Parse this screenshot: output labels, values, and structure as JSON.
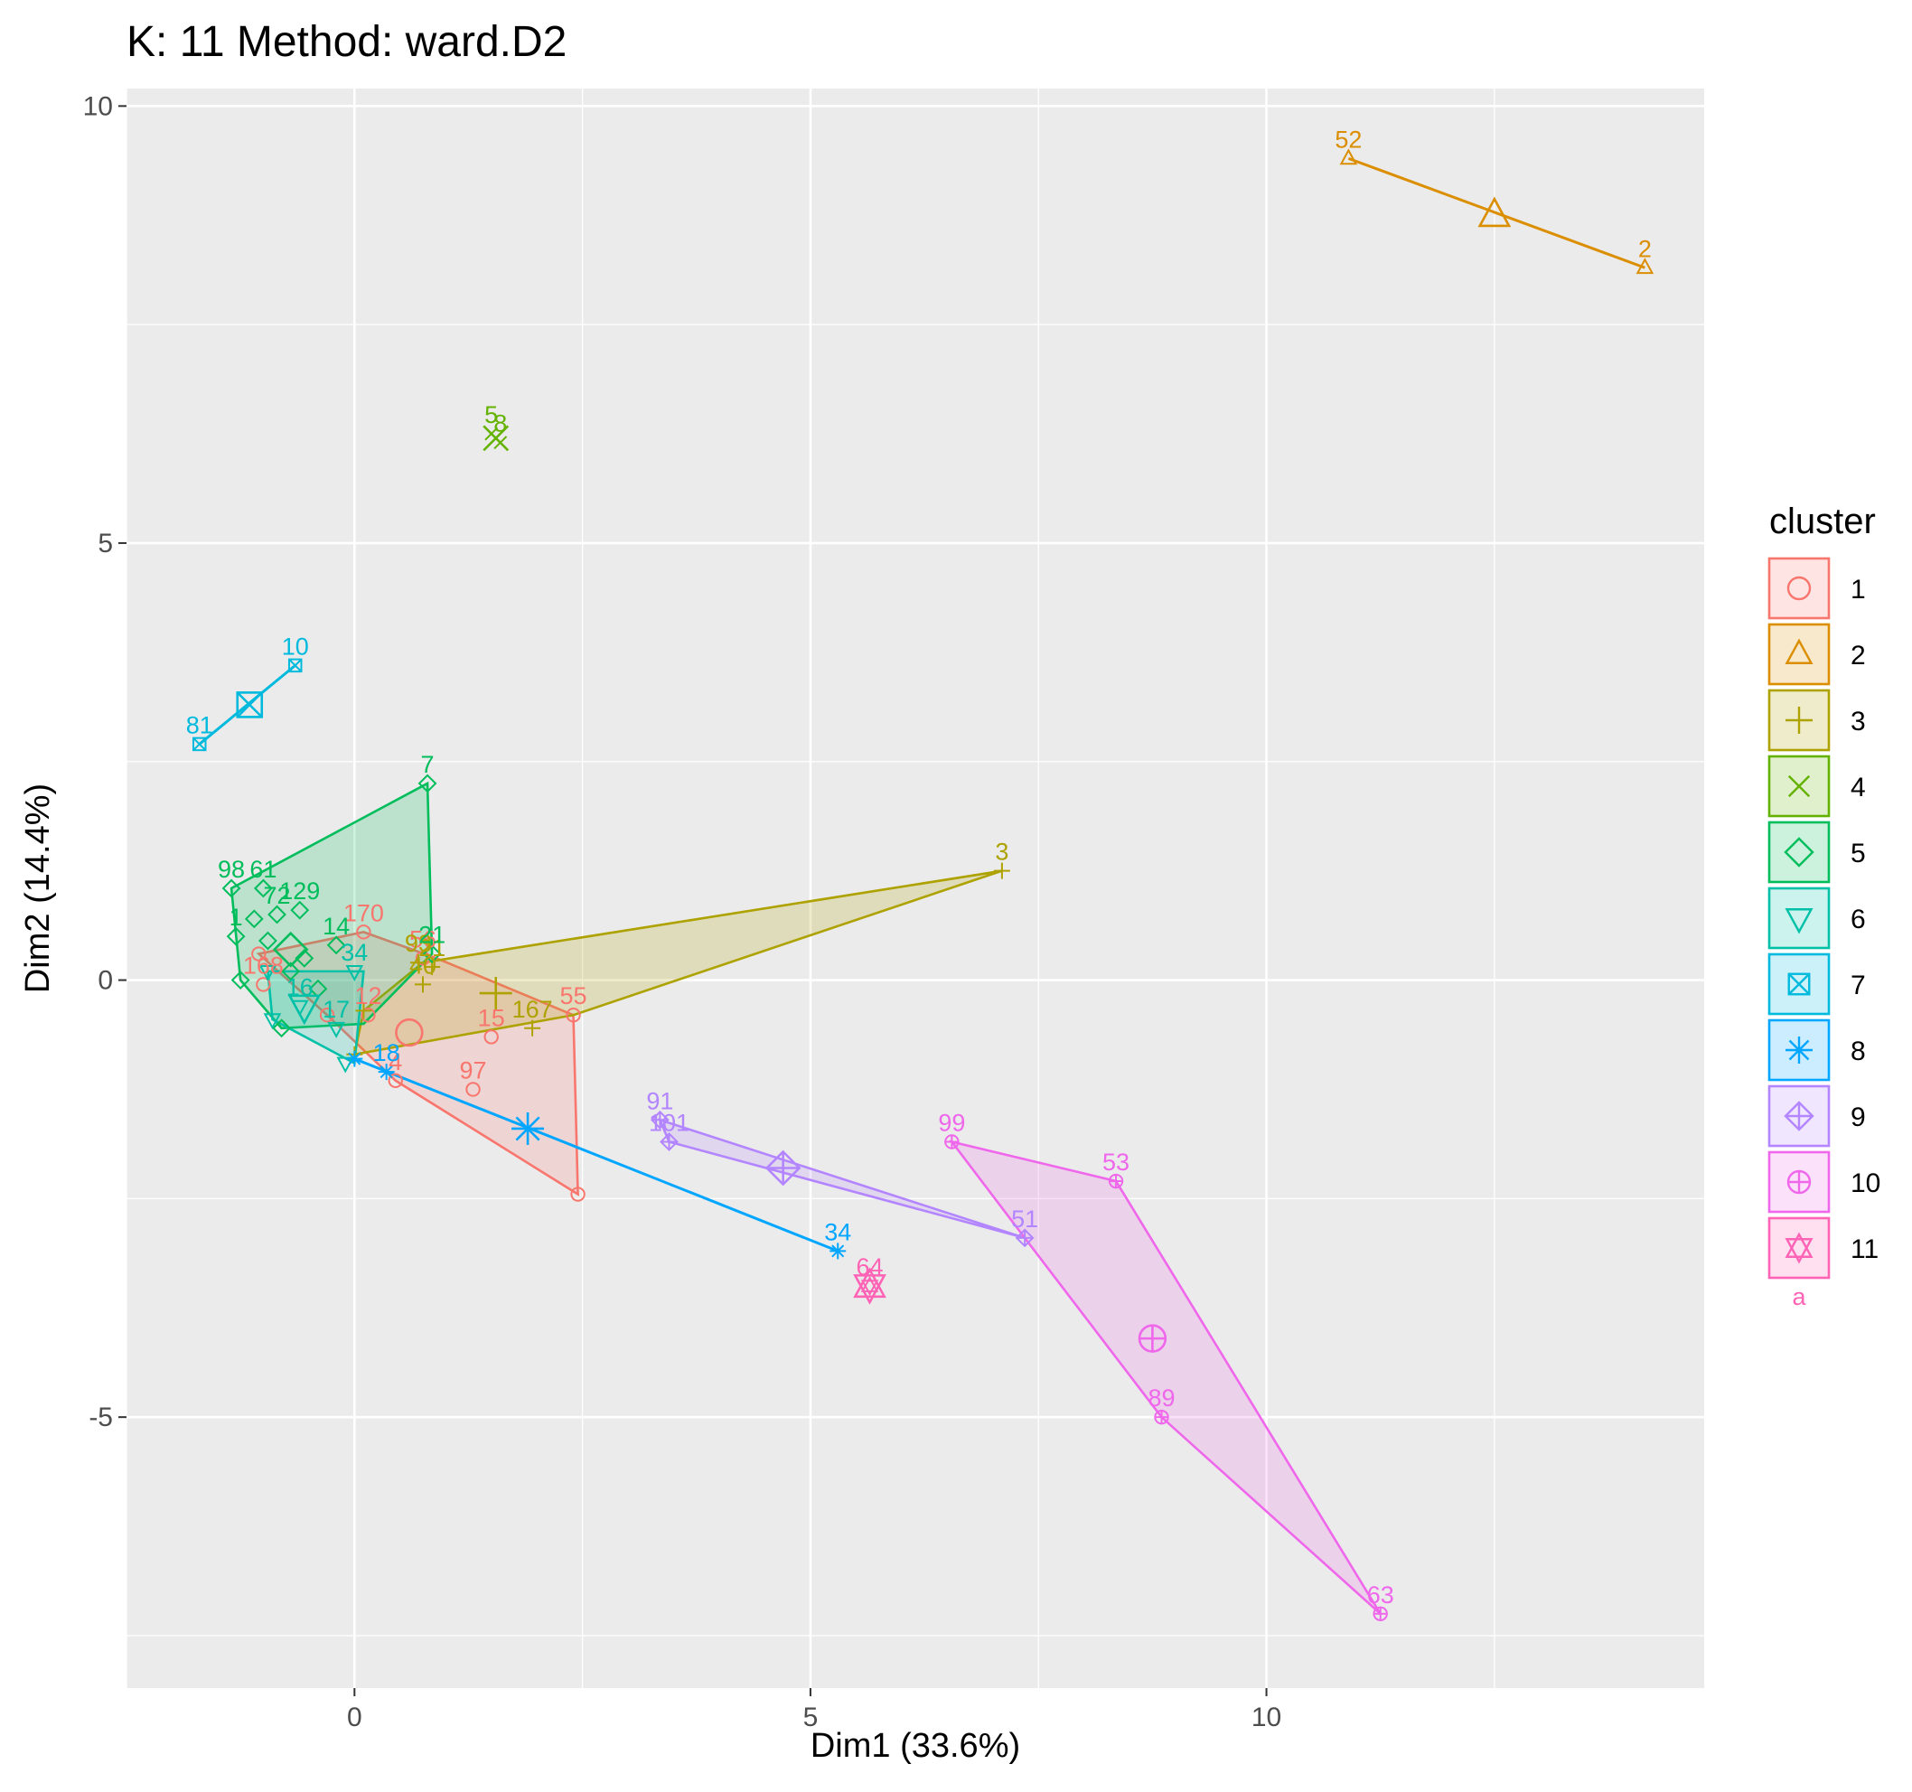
{
  "chart_data": {
    "type": "scatter",
    "title": "K: 11  Method: ward.D2",
    "xlabel": "Dim1 (33.6%)",
    "ylabel": "Dim2 (14.4%)",
    "xlim": [
      -2.5,
      14.8
    ],
    "ylim": [
      -8.1,
      10.2
    ],
    "x_ticks": [
      0,
      5,
      10
    ],
    "x_tick_labels": [
      "0",
      "5",
      "10"
    ],
    "y_ticks": [
      10,
      5,
      0,
      -5
    ],
    "y_tick_labels": [
      "10",
      "5",
      "0",
      "-5"
    ],
    "grid": true,
    "background": "#ebebeb",
    "legend": {
      "title": "cluster",
      "position": "right",
      "entries": [
        "1",
        "2",
        "3",
        "4",
        "5",
        "6",
        "7",
        "8",
        "9",
        "10",
        "11"
      ],
      "extra_label": "a"
    },
    "series": [
      {
        "name": "1",
        "color": "#F8766D",
        "shape": "circle-open",
        "centroid": [
          0.6,
          -0.6
        ],
        "hull": [
          [
            0.1,
            0.55
          ],
          [
            0.9,
            0.25
          ],
          [
            2.4,
            -0.4
          ],
          [
            2.45,
            -2.45
          ],
          [
            0.45,
            -1.15
          ],
          [
            -0.3,
            -0.4
          ],
          [
            -1.05,
            0.3
          ]
        ],
        "points": [
          {
            "x": 2.45,
            "y": -2.45,
            "label": ""
          },
          {
            "x": 2.4,
            "y": -0.4,
            "label": "55"
          },
          {
            "x": 1.5,
            "y": -0.65,
            "label": "15"
          },
          {
            "x": 1.3,
            "y": -1.25,
            "label": "97"
          },
          {
            "x": 0.45,
            "y": -1.15,
            "label": "4"
          },
          {
            "x": 0.75,
            "y": 0.25,
            "label": "56"
          },
          {
            "x": 0.1,
            "y": 0.55,
            "label": "170"
          },
          {
            "x": 0.15,
            "y": -0.4,
            "label": "12"
          },
          {
            "x": -1.05,
            "y": 0.3,
            "label": ""
          },
          {
            "x": -1.0,
            "y": -0.05,
            "label": "168"
          },
          {
            "x": -0.3,
            "y": -0.4,
            "label": ""
          }
        ]
      },
      {
        "name": "2",
        "color": "#DB8E00",
        "shape": "triangle-open",
        "centroid": [
          12.5,
          8.75
        ],
        "hull": [
          [
            10.9,
            9.4
          ],
          [
            14.15,
            8.15
          ]
        ],
        "points": [
          {
            "x": 10.9,
            "y": 9.4,
            "label": "52"
          },
          {
            "x": 14.15,
            "y": 8.15,
            "label": "2"
          }
        ]
      },
      {
        "name": "3",
        "color": "#AEA200",
        "shape": "plus",
        "centroid": [
          1.55,
          -0.15
        ],
        "hull": [
          [
            7.1,
            1.25
          ],
          [
            2.4,
            -0.4
          ],
          [
            0.0,
            -0.85
          ],
          [
            0.1,
            -0.35
          ],
          [
            0.75,
            0.2
          ]
        ],
        "points": [
          {
            "x": 7.1,
            "y": 1.25,
            "label": "3"
          },
          {
            "x": 1.95,
            "y": -0.55,
            "label": "167"
          },
          {
            "x": 0.75,
            "y": -0.05,
            "label": "40"
          },
          {
            "x": 0.85,
            "y": 0.15,
            "label": "21"
          },
          {
            "x": 0.7,
            "y": 0.2,
            "label": "93"
          },
          {
            "x": 0.1,
            "y": -0.35,
            "label": ""
          },
          {
            "x": 0.0,
            "y": -0.85,
            "label": ""
          }
        ]
      },
      {
        "name": "4",
        "color": "#64B200",
        "shape": "cross",
        "centroid": [
          1.55,
          6.2
        ],
        "hull": [],
        "points": [
          {
            "x": 1.5,
            "y": 6.25,
            "label": "5"
          },
          {
            "x": 1.6,
            "y": 6.15,
            "label": "8"
          }
        ]
      },
      {
        "name": "5",
        "color": "#00BD5C",
        "shape": "diamond-open",
        "centroid": [
          -0.7,
          0.35
        ],
        "hull": [
          [
            0.8,
            2.25
          ],
          [
            0.85,
            0.3
          ],
          [
            0.1,
            -0.5
          ],
          [
            -0.8,
            -0.55
          ],
          [
            -1.25,
            0.0
          ],
          [
            -1.35,
            1.05
          ]
        ],
        "points": [
          {
            "x": 0.8,
            "y": 2.25,
            "label": "7"
          },
          {
            "x": -1.35,
            "y": 1.05,
            "label": "98"
          },
          {
            "x": -1.0,
            "y": 1.05,
            "label": "61"
          },
          {
            "x": -0.6,
            "y": 0.8,
            "label": "129"
          },
          {
            "x": -0.85,
            "y": 0.75,
            "label": "72"
          },
          {
            "x": -0.2,
            "y": 0.4,
            "label": "14"
          },
          {
            "x": -1.3,
            "y": 0.5,
            "label": "1"
          },
          {
            "x": -1.25,
            "y": 0.0,
            "label": ""
          },
          {
            "x": -0.8,
            "y": -0.55,
            "label": ""
          },
          {
            "x": -1.1,
            "y": 0.7,
            "label": ""
          },
          {
            "x": -0.95,
            "y": 0.45,
            "label": ""
          },
          {
            "x": -0.55,
            "y": 0.25,
            "label": ""
          },
          {
            "x": -0.7,
            "y": 0.1,
            "label": ""
          },
          {
            "x": -0.4,
            "y": -0.1,
            "label": ""
          },
          {
            "x": 0.85,
            "y": 0.3,
            "label": "21"
          }
        ]
      },
      {
        "name": "6",
        "color": "#00C1A7",
        "shape": "triangle-down-open",
        "centroid": [
          -0.55,
          -0.3
        ],
        "hull": [
          [
            0.1,
            0.1
          ],
          [
            0.0,
            -0.95
          ],
          [
            -0.9,
            -0.45
          ],
          [
            -0.95,
            0.1
          ]
        ],
        "points": [
          {
            "x": 0.0,
            "y": 0.1,
            "label": "34"
          },
          {
            "x": -0.1,
            "y": -0.95,
            "label": ""
          },
          {
            "x": -0.2,
            "y": -0.55,
            "label": "17"
          },
          {
            "x": -0.6,
            "y": -0.3,
            "label": "16"
          },
          {
            "x": -0.9,
            "y": -0.45,
            "label": ""
          },
          {
            "x": -0.95,
            "y": 0.1,
            "label": ""
          }
        ]
      },
      {
        "name": "7",
        "color": "#00BADE",
        "shape": "square-cross",
        "centroid": [
          -1.15,
          3.15
        ],
        "hull": [
          [
            -1.7,
            2.7
          ],
          [
            -0.65,
            3.6
          ]
        ],
        "points": [
          {
            "x": -0.65,
            "y": 3.6,
            "label": "10"
          },
          {
            "x": -1.7,
            "y": 2.7,
            "label": "81"
          }
        ]
      },
      {
        "name": "8",
        "color": "#00A6FF",
        "shape": "asterisk",
        "centroid": [
          1.9,
          -1.7
        ],
        "hull": [
          [
            0.0,
            -0.9
          ],
          [
            5.3,
            -3.1
          ]
        ],
        "points": [
          {
            "x": 5.3,
            "y": -3.1,
            "label": "34"
          },
          {
            "x": 0.35,
            "y": -1.05,
            "label": "18"
          },
          {
            "x": 0.0,
            "y": -0.9,
            "label": ""
          }
        ]
      },
      {
        "name": "9",
        "color": "#B385FF",
        "shape": "diamond-plus",
        "centroid": [
          4.7,
          -2.15
        ],
        "hull": [
          [
            3.35,
            -1.6
          ],
          [
            7.35,
            -2.95
          ],
          [
            3.45,
            -1.85
          ]
        ],
        "points": [
          {
            "x": 3.35,
            "y": -1.6,
            "label": "91"
          },
          {
            "x": 3.45,
            "y": -1.85,
            "label": "101"
          },
          {
            "x": 7.35,
            "y": -2.95,
            "label": "51"
          }
        ]
      },
      {
        "name": "10",
        "color": "#EF67EB",
        "shape": "circle-plus",
        "centroid": [
          8.75,
          -4.1
        ],
        "hull": [
          [
            6.55,
            -1.85
          ],
          [
            8.35,
            -2.3
          ],
          [
            11.25,
            -7.25
          ],
          [
            8.85,
            -5.0
          ],
          [
            7.35,
            -2.95
          ]
        ],
        "points": [
          {
            "x": 6.55,
            "y": -1.85,
            "label": "99"
          },
          {
            "x": 8.35,
            "y": -2.3,
            "label": "53"
          },
          {
            "x": 8.85,
            "y": -5.0,
            "label": "89"
          },
          {
            "x": 11.25,
            "y": -7.25,
            "label": "63"
          }
        ]
      },
      {
        "name": "11",
        "color": "#FF63B6",
        "shape": "star-of-david",
        "centroid": [
          5.65,
          -3.5
        ],
        "hull": [],
        "points": [
          {
            "x": 5.65,
            "y": -3.5,
            "label": "64"
          }
        ]
      }
    ]
  }
}
